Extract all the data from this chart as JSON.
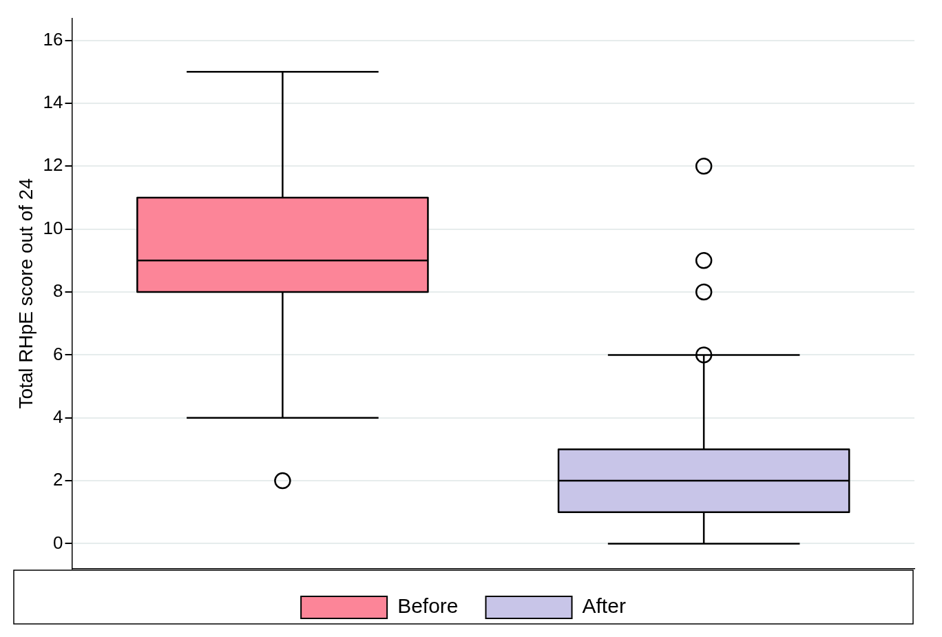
{
  "chart_data": {
    "type": "box",
    "ylabel": "Total RHpE score out of 24",
    "categories": [
      null,
      null
    ],
    "series": [
      {
        "name": "Before",
        "color": "#fc8598",
        "boxes": [
          {
            "low": 4,
            "q1": 8,
            "median": 9,
            "q3": 11,
            "high": 15,
            "outliers": [
              2
            ]
          },
          null
        ]
      },
      {
        "name": "After",
        "color": "#c8c5e8",
        "boxes": [
          null,
          {
            "low": 0,
            "q1": 1,
            "median": 2,
            "q3": 3,
            "high": 6,
            "outliers": [
              6,
              8,
              9,
              12
            ]
          }
        ]
      }
    ],
    "ylim": [
      -0.8,
      16.7
    ],
    "yticks": [
      0,
      2,
      4,
      6,
      8,
      10,
      12,
      14,
      16
    ],
    "grid": "y",
    "legend": "bottom",
    "tick_labels": "y"
  }
}
